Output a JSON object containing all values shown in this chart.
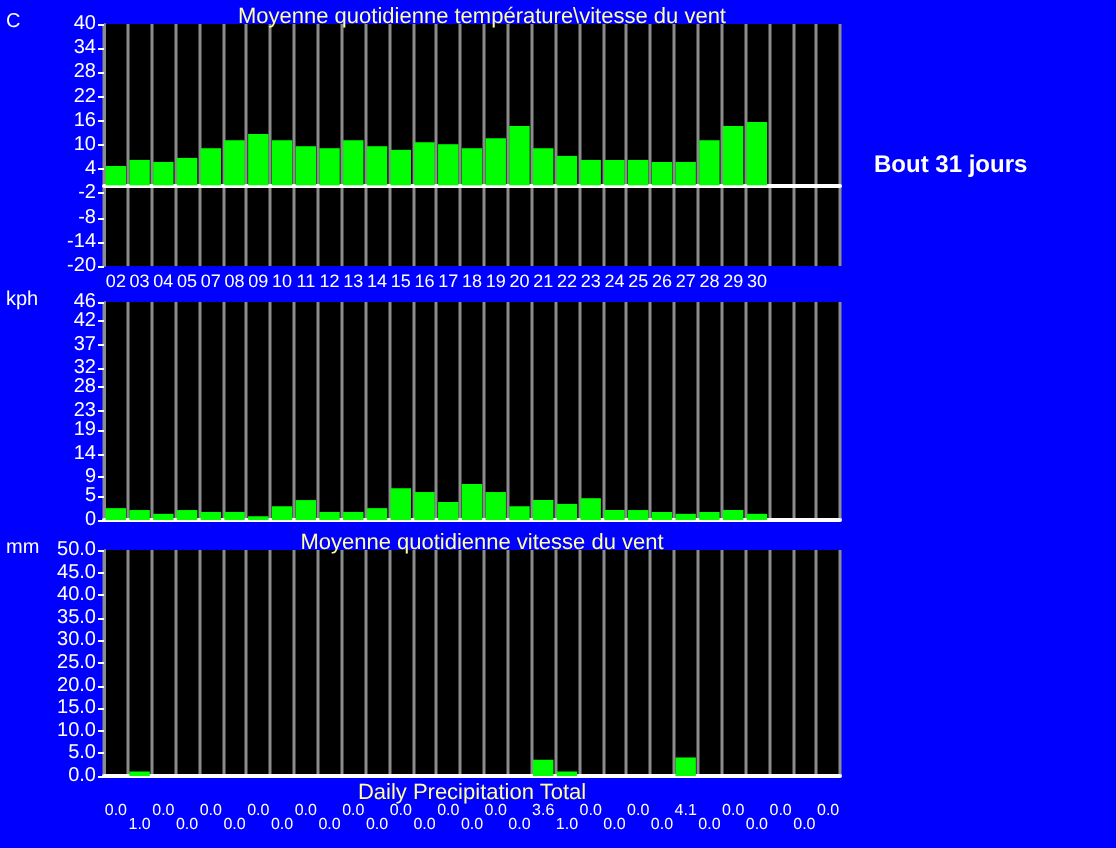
{
  "chart_data": [
    {
      "type": "bar",
      "title": "Moyenne quotidienne température\\vitesse du vent",
      "ylabel": "C",
      "categories": [
        "02",
        "03",
        "04",
        "05",
        "07",
        "08",
        "09",
        "10",
        "11",
        "12",
        "13",
        "14",
        "15",
        "16",
        "17",
        "18",
        "19",
        "20",
        "21",
        "22",
        "23",
        "24",
        "25",
        "26",
        "27",
        "28",
        "29",
        "30",
        null,
        null,
        null
      ],
      "values": [
        4.8,
        6.3,
        5.8,
        6.8,
        9.2,
        11.2,
        12.7,
        11.2,
        9.7,
        9.2,
        11.2,
        9.7,
        8.8,
        10.7,
        10.2,
        9.2,
        11.7,
        14.7,
        9.2,
        7.3,
        6.3,
        6.3,
        6.3,
        5.8,
        5.8,
        11.2,
        14.7,
        15.7,
        null,
        null,
        null
      ],
      "color": "#00ff00",
      "ylim": [
        -20,
        40
      ],
      "yticks": [
        -20,
        -14,
        -8,
        -2,
        4,
        10,
        16,
        22,
        28,
        34,
        40
      ],
      "grid": "x",
      "annotations": [
        "Bout 31 jours"
      ]
    },
    {
      "type": "bar",
      "ylabel": "kph",
      "categories": [
        null,
        null,
        null,
        null,
        null,
        null,
        null,
        null,
        null,
        null,
        null,
        null,
        null,
        null,
        null,
        null,
        null,
        null,
        null,
        null,
        null,
        null,
        null,
        null,
        null,
        null,
        null,
        null,
        null,
        null,
        null
      ],
      "values": [
        2.5,
        2.1,
        1.3,
        2.1,
        1.7,
        1.7,
        0.8,
        2.9,
        4.2,
        1.7,
        1.7,
        2.5,
        6.7,
        5.9,
        3.8,
        7.6,
        5.9,
        2.9,
        4.2,
        3.4,
        4.6,
        2.1,
        2.1,
        1.7,
        1.3,
        1.7,
        2.1,
        1.3,
        null,
        null,
        null
      ],
      "color": "#00ff00",
      "ylim": [
        0,
        46
      ],
      "yticks": [
        0,
        5,
        9,
        14,
        19,
        23,
        28,
        32,
        37,
        42,
        46
      ],
      "grid": "x",
      "tick_labels": "y"
    },
    {
      "type": "bar",
      "title": "Moyenne quotidienne vitesse du vent",
      "xlabel": "Daily Precipitation Total",
      "ylabel": "mm",
      "categories": [
        null,
        null,
        null,
        null,
        null,
        null,
        null,
        null,
        null,
        null,
        null,
        null,
        null,
        null,
        null,
        null,
        null,
        null,
        null,
        null,
        null,
        null,
        null,
        null,
        null,
        null,
        null,
        null,
        null,
        null,
        null
      ],
      "values": [
        0,
        1,
        0,
        0,
        0,
        0,
        0,
        0,
        0,
        0,
        0,
        0,
        0,
        0,
        0,
        0,
        0,
        0,
        3.6,
        1,
        0,
        0,
        0,
        0,
        4.1,
        0,
        0,
        0,
        0,
        0,
        0
      ],
      "value_labels": [
        "0.0",
        "1.0",
        "0.0",
        "0.0",
        "0.0",
        "0.0",
        "0.0",
        "0.0",
        "0.0",
        "0.0",
        "0.0",
        "0.0",
        "0.0",
        "0.0",
        "0.0",
        "0.0",
        "0.0",
        "0.0",
        "3.6",
        "1.0",
        "0.0",
        "0.0",
        "0.0",
        "0.0",
        "4.1",
        "0.0",
        "0.0",
        "0.0",
        "0.0",
        "0.0",
        "0.0"
      ],
      "color": "#00ff00",
      "ylim": [
        0,
        50
      ],
      "yticks": [
        {
          "value": 0,
          "label": "0.0"
        },
        {
          "value": 5,
          "label": "5.0"
        },
        {
          "value": 10,
          "label": "10.0"
        },
        {
          "value": 15,
          "label": "15.0"
        },
        {
          "value": 20,
          "label": "20.0"
        },
        {
          "value": 25,
          "label": "25.0"
        },
        {
          "value": 30,
          "label": "30.0"
        },
        {
          "value": 35,
          "label": "35.0"
        },
        {
          "value": 40,
          "label": "40.0"
        },
        {
          "value": 45,
          "label": "45.0"
        },
        {
          "value": 50,
          "label": "50.0"
        }
      ],
      "grid": "x",
      "tick_labels": "y"
    }
  ]
}
